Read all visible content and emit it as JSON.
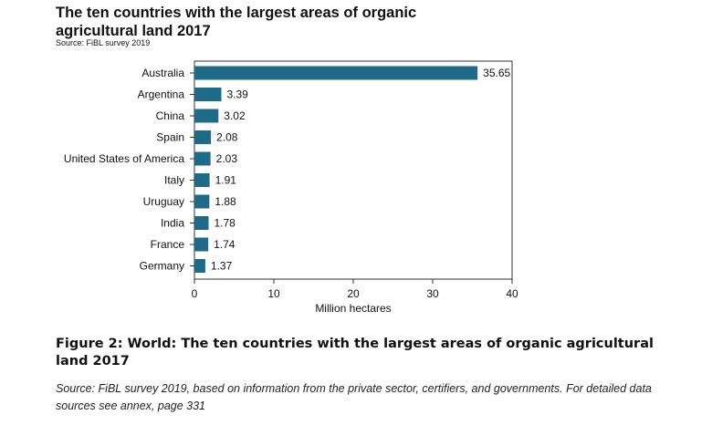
{
  "header": {
    "title": "The ten countries with the largest areas of organic agricultural land 2017",
    "source_line": "Source: FiBL survey 2019"
  },
  "chart_data": {
    "type": "bar",
    "orientation": "horizontal",
    "categories": [
      "Australia",
      "Argentina",
      "China",
      "Spain",
      "United States of America",
      "Italy",
      "Uruguay",
      "India",
      "France",
      "Germany"
    ],
    "values": [
      35.65,
      3.39,
      3.02,
      2.08,
      2.03,
      1.91,
      1.88,
      1.78,
      1.74,
      1.37
    ],
    "value_labels": [
      "35.65",
      "3.39",
      "3.02",
      "2.08",
      "2.03",
      "1.91",
      "1.88",
      "1.78",
      "1.74",
      "1.37"
    ],
    "xlabel": "Million hectares",
    "ylabel": "",
    "xlim": [
      0,
      40
    ],
    "xticks": [
      0,
      10,
      20,
      30,
      40
    ],
    "grid": false,
    "legend": "none",
    "bar_color": "#1f6b87"
  },
  "caption": {
    "figure": "Figure 2: World: The ten countries with the largest areas of organic agricultural land 2017",
    "source": "Source: FiBL survey 2019, based on information from the private sector, certifiers, and governments. For detailed data sources see annex, page 331"
  }
}
